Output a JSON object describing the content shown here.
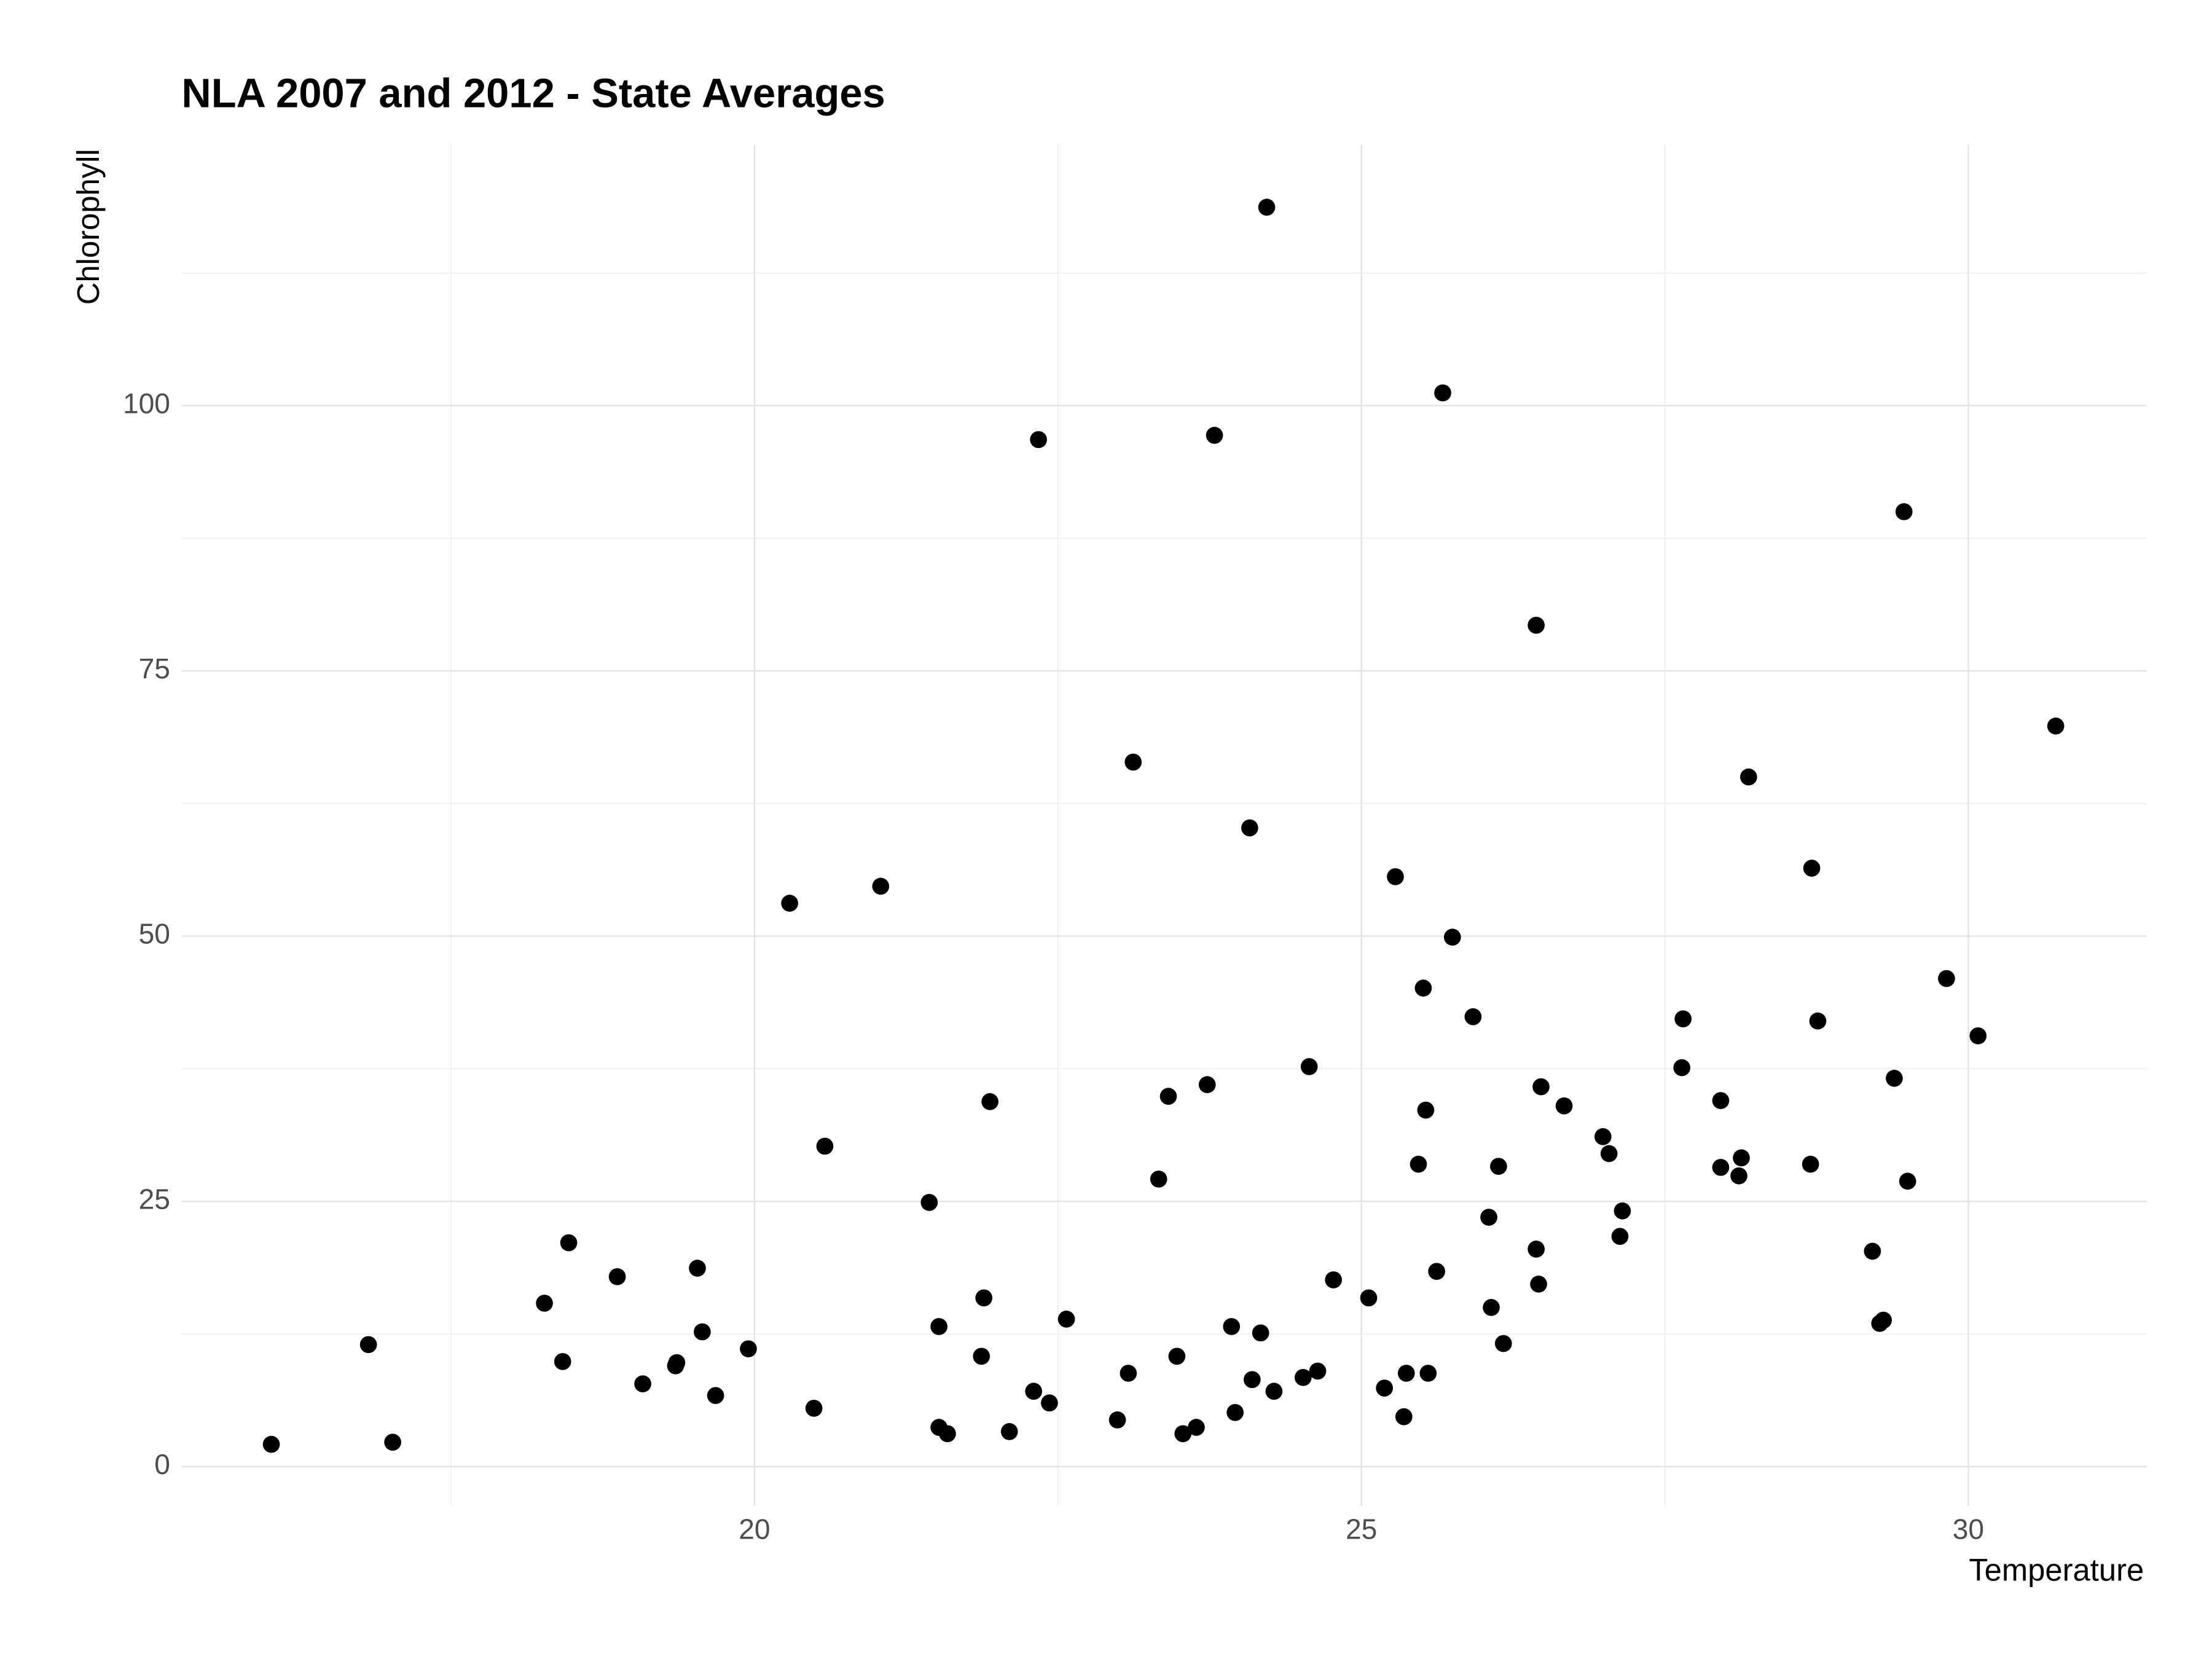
{
  "chart_data": {
    "type": "scatter",
    "title": "NLA 2007 and 2012 - State Averages",
    "x_label": "Temperature",
    "y_label": "Chlorophyll",
    "color": "#000000",
    "grid": true,
    "minor_grid": true,
    "xlim": [
      15.28,
      31.47
    ],
    "ylim": [
      -3.7,
      124.6
    ],
    "xticks": [
      20,
      25,
      30
    ],
    "yticks": [
      0,
      25,
      50,
      75,
      100
    ],
    "x": [
      16.02,
      16.82,
      17.02,
      18.27,
      18.42,
      18.47,
      18.87,
      19.08,
      19.35,
      19.36,
      19.53,
      19.57,
      19.68,
      19.95,
      20.29,
      20.49,
      20.58,
      21.04,
      21.44,
      21.52,
      21.52,
      21.59,
      21.87,
      21.89,
      21.94,
      22.1,
      22.3,
      22.34,
      22.43,
      22.57,
      22.99,
      23.08,
      23.12,
      23.33,
      23.41,
      23.48,
      23.53,
      23.64,
      23.73,
      23.79,
      23.93,
      23.96,
      24.08,
      24.1,
      24.17,
      24.22,
      24.28,
      24.52,
      24.57,
      24.64,
      24.77,
      25.06,
      25.19,
      25.28,
      25.35,
      25.37,
      25.47,
      25.51,
      25.53,
      25.55,
      25.62,
      25.67,
      25.75,
      25.92,
      26.05,
      26.07,
      26.13,
      26.17,
      26.44,
      26.44,
      26.46,
      26.48,
      26.67,
      26.99,
      27.04,
      27.13,
      27.15,
      27.64,
      27.65,
      27.96,
      27.96,
      28.11,
      28.13,
      28.19,
      28.7,
      28.71,
      28.76,
      29.21,
      29.27,
      29.3,
      29.39,
      29.47,
      29.5,
      29.82,
      30.08,
      30.72
    ],
    "values": [
      2.1,
      11.5,
      2.3,
      15.4,
      9.9,
      21.1,
      17.9,
      7.8,
      9.5,
      9.8,
      18.7,
      12.7,
      6.7,
      11.1,
      53.1,
      5.5,
      30.2,
      54.7,
      24.9,
      13.2,
      3.7,
      3.1,
      10.4,
      15.9,
      34.4,
      3.3,
      7.1,
      96.8,
      6.0,
      13.9,
      4.4,
      8.8,
      66.4,
      27.1,
      34.9,
      10.4,
      3.1,
      3.7,
      36.0,
      97.2,
      13.2,
      5.1,
      60.2,
      8.2,
      12.6,
      118.7,
      7.1,
      8.4,
      37.7,
      9.0,
      17.6,
      15.9,
      7.4,
      55.6,
      4.7,
      8.8,
      28.5,
      45.1,
      33.6,
      8.8,
      18.4,
      101.2,
      49.9,
      42.4,
      23.5,
      15.0,
      28.3,
      11.6,
      20.5,
      79.3,
      17.2,
      35.8,
      34.0,
      31.1,
      29.5,
      21.7,
      24.1,
      37.6,
      42.2,
      34.5,
      28.2,
      27.4,
      29.1,
      65.0,
      28.5,
      56.4,
      42.0,
      20.3,
      13.5,
      13.8,
      36.6,
      90.0,
      26.9,
      46.0,
      40.6,
      69.8
    ]
  }
}
